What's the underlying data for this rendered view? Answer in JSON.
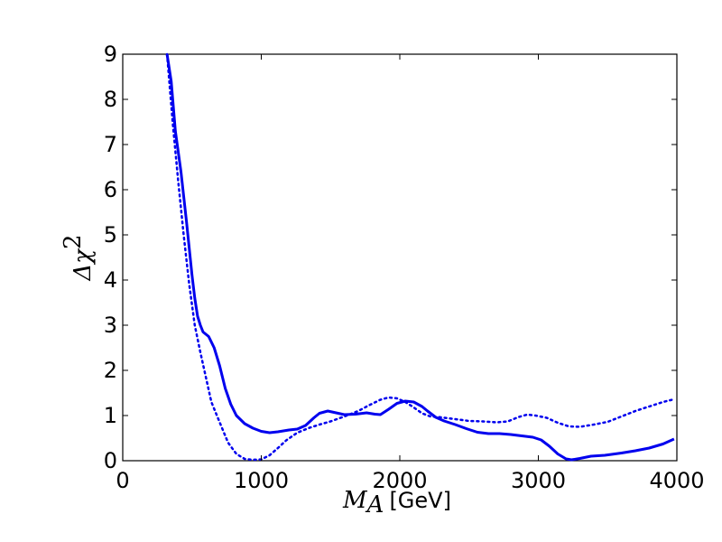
{
  "chart_data": {
    "type": "line",
    "xlabel": {
      "symbol": "M",
      "subscript": "A",
      "unit": "[GeV]"
    },
    "ylabel": {
      "symbol": "Δχ",
      "superscript": "2"
    },
    "xlim": [
      0,
      4000
    ],
    "ylim": [
      0,
      9
    ],
    "x_ticks": [
      "0",
      "1000",
      "2000",
      "3000",
      "4000"
    ],
    "y_ticks": [
      "0",
      "1",
      "2",
      "3",
      "4",
      "5",
      "6",
      "7",
      "8",
      "9"
    ],
    "grid": false,
    "legend": "none",
    "series": [
      {
        "style": "solid",
        "color": "#0000ee",
        "points": [
          [
            320,
            9.0
          ],
          [
            350,
            8.4
          ],
          [
            380,
            7.3
          ],
          [
            420,
            6.4
          ],
          [
            460,
            5.3
          ],
          [
            500,
            4.1
          ],
          [
            520,
            3.6
          ],
          [
            540,
            3.2
          ],
          [
            560,
            3.0
          ],
          [
            580,
            2.85
          ],
          [
            620,
            2.75
          ],
          [
            660,
            2.5
          ],
          [
            700,
            2.1
          ],
          [
            740,
            1.6
          ],
          [
            780,
            1.25
          ],
          [
            820,
            1.0
          ],
          [
            880,
            0.82
          ],
          [
            940,
            0.72
          ],
          [
            1000,
            0.65
          ],
          [
            1060,
            0.62
          ],
          [
            1120,
            0.64
          ],
          [
            1200,
            0.68
          ],
          [
            1260,
            0.7
          ],
          [
            1320,
            0.78
          ],
          [
            1380,
            0.95
          ],
          [
            1420,
            1.05
          ],
          [
            1480,
            1.1
          ],
          [
            1540,
            1.06
          ],
          [
            1600,
            1.02
          ],
          [
            1680,
            1.03
          ],
          [
            1760,
            1.06
          ],
          [
            1820,
            1.03
          ],
          [
            1860,
            1.02
          ],
          [
            1920,
            1.14
          ],
          [
            1980,
            1.27
          ],
          [
            2040,
            1.32
          ],
          [
            2100,
            1.3
          ],
          [
            2160,
            1.2
          ],
          [
            2200,
            1.1
          ],
          [
            2260,
            0.96
          ],
          [
            2320,
            0.88
          ],
          [
            2400,
            0.8
          ],
          [
            2480,
            0.71
          ],
          [
            2560,
            0.63
          ],
          [
            2640,
            0.6
          ],
          [
            2720,
            0.6
          ],
          [
            2800,
            0.58
          ],
          [
            2880,
            0.55
          ],
          [
            2960,
            0.52
          ],
          [
            3020,
            0.46
          ],
          [
            3080,
            0.32
          ],
          [
            3140,
            0.15
          ],
          [
            3200,
            0.04
          ],
          [
            3240,
            0.02
          ],
          [
            3300,
            0.05
          ],
          [
            3380,
            0.1
          ],
          [
            3480,
            0.12
          ],
          [
            3600,
            0.17
          ],
          [
            3700,
            0.22
          ],
          [
            3800,
            0.28
          ],
          [
            3900,
            0.37
          ],
          [
            3980,
            0.48
          ]
        ]
      },
      {
        "style": "dotted",
        "color": "#0000ee",
        "points": [
          [
            320,
            9.0
          ],
          [
            360,
            7.5
          ],
          [
            400,
            6.2
          ],
          [
            440,
            5.0
          ],
          [
            480,
            3.9
          ],
          [
            520,
            3.0
          ],
          [
            560,
            2.4
          ],
          [
            600,
            1.85
          ],
          [
            640,
            1.3
          ],
          [
            700,
            0.85
          ],
          [
            760,
            0.4
          ],
          [
            820,
            0.15
          ],
          [
            880,
            0.04
          ],
          [
            940,
            0.02
          ],
          [
            1000,
            0.03
          ],
          [
            1060,
            0.12
          ],
          [
            1120,
            0.28
          ],
          [
            1180,
            0.45
          ],
          [
            1260,
            0.62
          ],
          [
            1340,
            0.72
          ],
          [
            1420,
            0.8
          ],
          [
            1500,
            0.87
          ],
          [
            1600,
            0.98
          ],
          [
            1700,
            1.1
          ],
          [
            1780,
            1.23
          ],
          [
            1860,
            1.35
          ],
          [
            1920,
            1.4
          ],
          [
            1980,
            1.38
          ],
          [
            2040,
            1.3
          ],
          [
            2100,
            1.18
          ],
          [
            2160,
            1.05
          ],
          [
            2220,
            0.98
          ],
          [
            2300,
            0.96
          ],
          [
            2400,
            0.92
          ],
          [
            2500,
            0.88
          ],
          [
            2600,
            0.87
          ],
          [
            2700,
            0.85
          ],
          [
            2780,
            0.87
          ],
          [
            2860,
            0.97
          ],
          [
            2920,
            1.02
          ],
          [
            2980,
            1.0
          ],
          [
            3060,
            0.95
          ],
          [
            3140,
            0.84
          ],
          [
            3220,
            0.76
          ],
          [
            3300,
            0.75
          ],
          [
            3400,
            0.8
          ],
          [
            3500,
            0.86
          ],
          [
            3600,
            0.98
          ],
          [
            3700,
            1.1
          ],
          [
            3800,
            1.2
          ],
          [
            3900,
            1.3
          ],
          [
            3980,
            1.36
          ]
        ]
      }
    ]
  }
}
